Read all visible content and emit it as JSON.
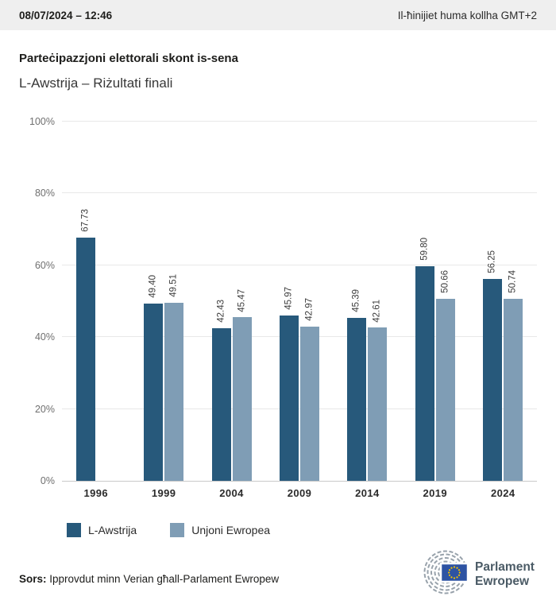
{
  "header": {
    "datetime": "08/07/2024 – 12:46",
    "timezone_note": "Il-ħinijiet huma kollha GMT+2"
  },
  "title": "Parteċipazzjoni elettorali skont is-sena",
  "subtitle": "L-Awstrija – Riżultati finali",
  "chart_data": {
    "type": "bar",
    "categories": [
      "1996",
      "1999",
      "2004",
      "2009",
      "2014",
      "2019",
      "2024"
    ],
    "series": [
      {
        "name": "L-Awstrija",
        "color": "#27597b",
        "values": [
          67.73,
          49.4,
          42.43,
          45.97,
          45.39,
          59.8,
          56.25
        ]
      },
      {
        "name": "Unjoni Ewropea",
        "color": "#7f9db5",
        "values": [
          null,
          49.51,
          45.47,
          42.97,
          42.61,
          50.66,
          50.74
        ]
      }
    ],
    "title": "Parteċipazzjoni elettorali skont is-sena",
    "xlabel": "",
    "ylabel": "",
    "ylim": [
      0,
      100
    ],
    "ytick_labels": [
      "0%",
      "20%",
      "40%",
      "60%",
      "80%",
      "100%"
    ],
    "ytick_values": [
      0,
      20,
      40,
      60,
      80,
      100
    ],
    "grid": true,
    "legend_position": "bottom",
    "value_labels": "rotated-90-two-decimals"
  },
  "legend": {
    "items": [
      {
        "label": "L-Awstrija",
        "color": "#27597b"
      },
      {
        "label": "Unjoni Ewropea",
        "color": "#7f9db5"
      }
    ]
  },
  "footer": {
    "source_label": "Sors:",
    "source_text": " Ipprovdut minn Verian għall-Parlament Ewropew",
    "logo_line1": "Parlament",
    "logo_line2": "Ewropew"
  },
  "colors": {
    "header_bg": "#efefef",
    "bar_dark": "#27597b",
    "bar_light": "#7f9db5",
    "gridline": "#e8e8e8",
    "axis_line": "#c9c9c9",
    "eu_flag_blue": "#2d53a3",
    "eu_star_yellow": "#f5c400",
    "logo_gray": "#98a2ab",
    "logo_text": "#4b5b66"
  }
}
